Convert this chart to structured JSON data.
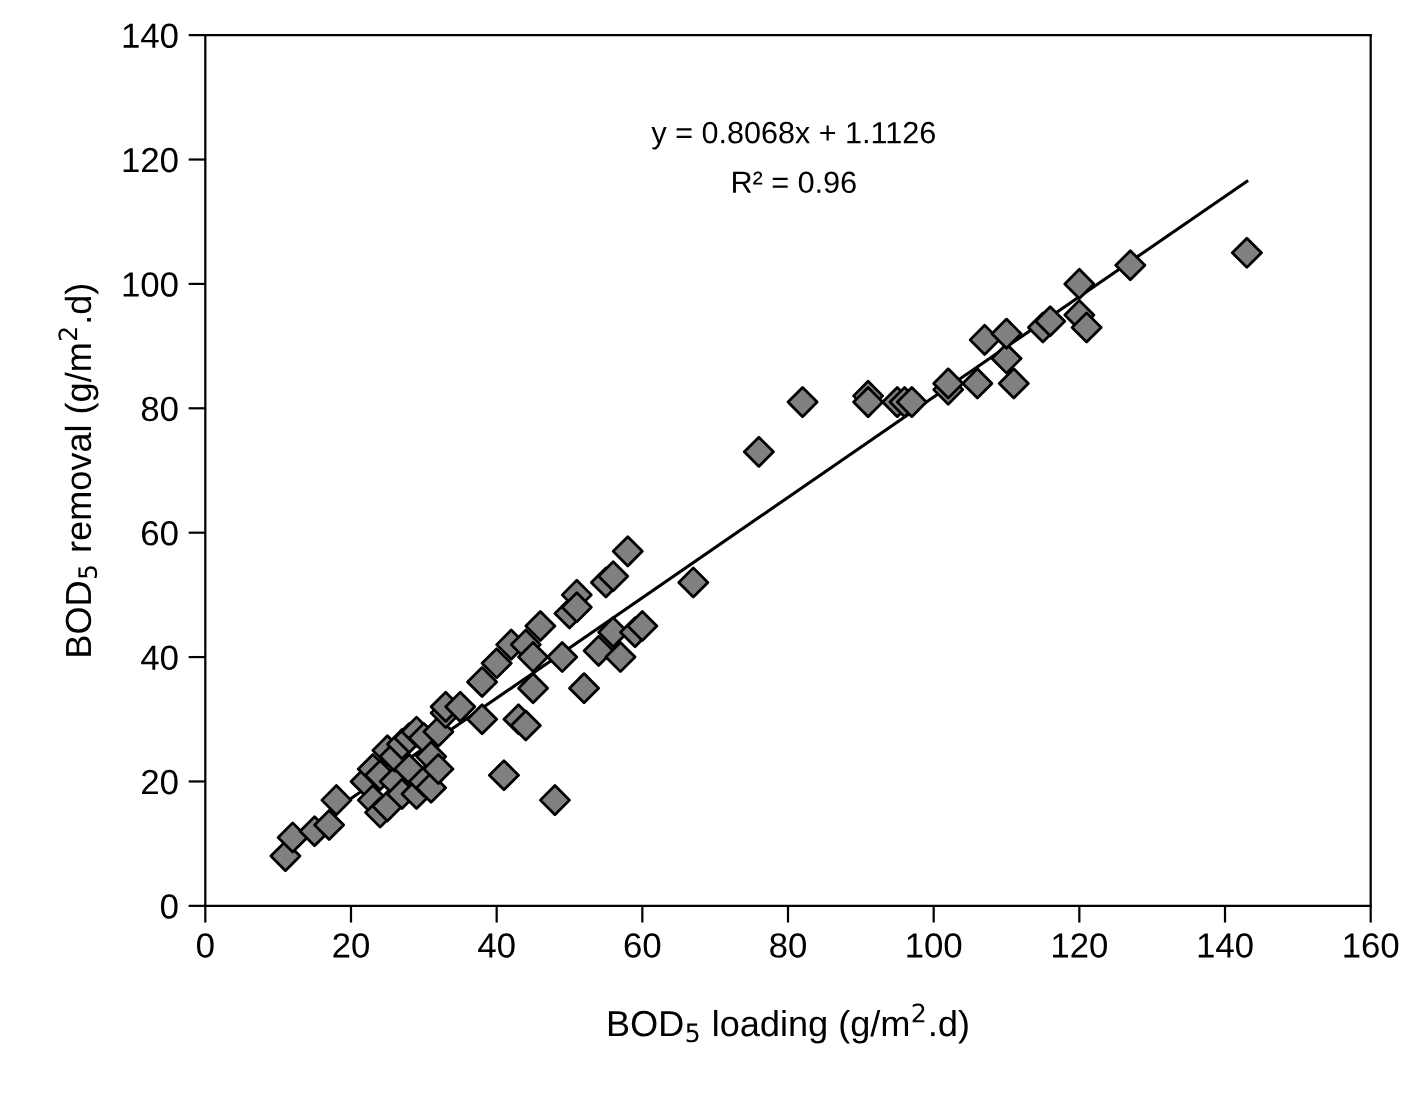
{
  "chart_data": {
    "type": "scatter",
    "xlabel": "BOD$_{5}$ loading (g/m$^{2}$.d)",
    "ylabel": "BOD$_{5}$ removal (g/m$^{2}$.d)",
    "annotations": [
      "y = 0.8068x + 1.1126",
      "R² = 0.96"
    ],
    "xlim": [
      0,
      160
    ],
    "xticks": [
      0,
      20,
      40,
      60,
      80,
      100,
      120,
      140,
      160
    ],
    "ylim": [
      0,
      140
    ],
    "yticks": [
      0,
      20,
      40,
      60,
      80,
      100,
      120,
      140
    ],
    "grid": false,
    "legend": false,
    "marker": "diamond",
    "series": [
      {
        "color": "#808080",
        "x": [
          11,
          12,
          15,
          17,
          18,
          22,
          23,
          23,
          24,
          24,
          25,
          25,
          26,
          26,
          27,
          27,
          28,
          28,
          29,
          29,
          30,
          30,
          31,
          31,
          32,
          32,
          33,
          33,
          35,
          38,
          38,
          40,
          41,
          42,
          43,
          44,
          44,
          45,
          45,
          46,
          48,
          49,
          50,
          51,
          51,
          52,
          54,
          55,
          56,
          56,
          57,
          58,
          59,
          60,
          67,
          76,
          82,
          91,
          91,
          95,
          96,
          97,
          102,
          102,
          106,
          107,
          110,
          110,
          111,
          115,
          116,
          120,
          120,
          121,
          127,
          143
        ],
        "values": [
          8,
          11,
          12,
          13,
          17,
          20,
          17,
          22,
          15,
          21,
          16,
          25,
          20,
          24,
          26,
          18,
          22,
          27,
          18,
          28,
          20,
          27,
          19,
          24,
          28,
          22,
          31,
          32,
          32,
          30,
          36,
          39,
          21,
          42,
          30,
          29,
          42,
          35,
          40,
          45,
          17,
          40,
          47,
          50,
          48,
          35,
          41,
          52,
          53,
          44,
          40,
          57,
          44,
          45,
          52,
          73,
          81,
          82,
          81,
          81,
          81,
          81,
          83,
          84,
          84,
          91,
          88,
          92,
          84,
          93,
          94,
          95,
          100,
          93,
          103,
          105
        ]
      },
      {
        "type": "line",
        "color": "#000000",
        "marker": "none",
        "line_style": "solid",
        "x": [
          11,
          143
        ],
        "values": [
          10.0,
          116.5
        ]
      }
    ]
  }
}
